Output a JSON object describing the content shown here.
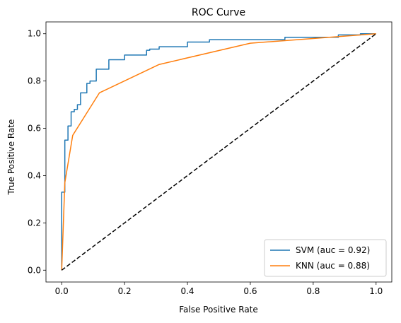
{
  "chart_data": {
    "type": "line",
    "title": "ROC Curve",
    "xlabel": "False Positive Rate",
    "ylabel": "True Positive Rate",
    "xlim": [
      -0.05,
      1.05
    ],
    "ylim": [
      -0.05,
      1.05
    ],
    "xticks": [
      "0.0",
      "0.2",
      "0.4",
      "0.6",
      "0.8",
      "1.0"
    ],
    "yticks": [
      "0.0",
      "0.2",
      "0.4",
      "0.6",
      "0.8",
      "1.0"
    ],
    "grid": false,
    "legend_position": "bottom-right",
    "series": [
      {
        "name": "SVM (auc = 0.92)",
        "color": "#1f77b4",
        "step": true,
        "x": [
          0.0,
          0.0,
          0.0,
          0.0,
          0.01,
          0.01,
          0.02,
          0.02,
          0.03,
          0.03,
          0.04,
          0.04,
          0.05,
          0.05,
          0.06,
          0.06,
          0.08,
          0.08,
          0.09,
          0.09,
          0.11,
          0.11,
          0.15,
          0.15,
          0.2,
          0.2,
          0.27,
          0.27,
          0.28,
          0.28,
          0.31,
          0.31,
          0.4,
          0.4,
          0.47,
          0.47,
          0.71,
          0.71,
          0.88,
          0.88,
          0.95,
          0.95,
          1.0
        ],
        "y": [
          0.0,
          0.0,
          0.33,
          0.33,
          0.33,
          0.55,
          0.55,
          0.61,
          0.61,
          0.67,
          0.67,
          0.68,
          0.68,
          0.7,
          0.7,
          0.75,
          0.75,
          0.79,
          0.79,
          0.8,
          0.8,
          0.85,
          0.85,
          0.89,
          0.89,
          0.91,
          0.91,
          0.93,
          0.93,
          0.935,
          0.935,
          0.945,
          0.945,
          0.965,
          0.965,
          0.975,
          0.975,
          0.985,
          0.985,
          0.995,
          0.995,
          1.0,
          1.0
        ]
      },
      {
        "name": "KNN (auc = 0.88)",
        "color": "#ff7f0e",
        "step": false,
        "x": [
          0.0,
          0.01,
          0.035,
          0.12,
          0.31,
          0.6,
          1.0
        ],
        "y": [
          0.0,
          0.37,
          0.57,
          0.75,
          0.87,
          0.96,
          1.0
        ]
      },
      {
        "name": "",
        "color": "#000000",
        "dashed": true,
        "x": [
          0.0,
          1.0
        ],
        "y": [
          0.0,
          1.0
        ]
      }
    ]
  }
}
